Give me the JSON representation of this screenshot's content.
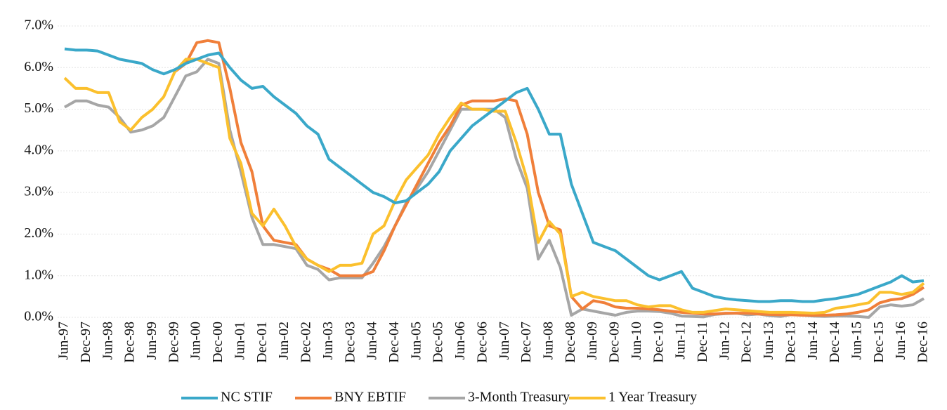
{
  "chart_data": {
    "type": "line",
    "categories": [
      "Jun-97",
      null,
      "Dec-97",
      null,
      "Jun-98",
      null,
      "Dec-98",
      null,
      "Jun-99",
      null,
      "Dec-99",
      null,
      "Jun-00",
      null,
      "Dec-00",
      null,
      "Jun-01",
      null,
      "Dec-01",
      null,
      "Jun-02",
      null,
      "Dec-02",
      null,
      "Jun-03",
      null,
      "Dec-03",
      null,
      "Jun-04",
      null,
      "Dec-04",
      null,
      "Jun-05",
      null,
      "Dec-05",
      null,
      "Jun-06",
      null,
      "Dec-06",
      null,
      "Jun-07",
      null,
      "Dec-07",
      null,
      "Jun-08",
      null,
      "Dec-08",
      null,
      "Jun-09",
      null,
      "Dec-09",
      null,
      "Jun-10",
      null,
      "Dec-10",
      null,
      "Jun-11",
      null,
      "Dec-11",
      null,
      "Jun-12",
      null,
      "Dec-12",
      null,
      "Jun-13",
      null,
      "Dec-13",
      null,
      "Jun-14",
      null,
      "Dec-14",
      null,
      "Jun-15",
      null,
      "Dec-15",
      null,
      "Jun-16",
      null,
      "Dec-16"
    ],
    "series": [
      {
        "name": "NC STIF",
        "color": "#3aa8c9",
        "values": [
          6.45,
          6.42,
          6.42,
          6.4,
          6.3,
          6.2,
          6.15,
          6.1,
          5.95,
          5.85,
          5.95,
          6.1,
          6.2,
          6.3,
          6.35,
          6.0,
          5.7,
          5.5,
          5.55,
          5.3,
          5.1,
          4.9,
          4.6,
          4.4,
          3.8,
          3.6,
          3.4,
          3.2,
          3.0,
          2.9,
          2.75,
          2.8,
          3.0,
          3.2,
          3.5,
          4.0,
          4.3,
          4.6,
          4.8,
          5.0,
          5.2,
          5.4,
          5.5,
          5.0,
          4.4,
          4.4,
          3.2,
          2.5,
          1.8,
          1.7,
          1.6,
          1.4,
          1.2,
          1.0,
          0.9,
          1.0,
          1.1,
          0.7,
          0.6,
          0.5,
          0.45,
          0.42,
          0.4,
          0.38,
          0.38,
          0.4,
          0.4,
          0.38,
          0.38,
          0.42,
          0.45,
          0.5,
          0.55,
          0.65,
          0.75,
          0.85,
          1.0,
          0.85,
          0.88
        ]
      },
      {
        "name": "BNY EBTIF",
        "color": "#f07f3a",
        "values": [
          null,
          null,
          null,
          null,
          null,
          null,
          null,
          null,
          null,
          null,
          5.9,
          6.1,
          6.6,
          6.65,
          6.6,
          5.5,
          4.2,
          3.5,
          2.2,
          1.85,
          1.8,
          1.75,
          1.4,
          1.25,
          1.15,
          1.0,
          1.0,
          1.0,
          1.1,
          1.6,
          2.2,
          2.7,
          3.2,
          3.7,
          4.2,
          4.6,
          5.1,
          5.2,
          5.2,
          5.2,
          5.25,
          5.2,
          4.4,
          3.0,
          2.2,
          2.1,
          0.5,
          0.2,
          0.4,
          0.35,
          0.25,
          0.22,
          0.22,
          0.2,
          0.18,
          0.15,
          0.12,
          0.1,
          0.08,
          0.08,
          0.1,
          0.1,
          0.1,
          0.08,
          0.07,
          0.06,
          0.06,
          0.05,
          0.05,
          0.05,
          0.06,
          0.08,
          0.12,
          0.18,
          0.35,
          0.42,
          0.45,
          0.55,
          0.72
        ]
      },
      {
        "name": "3-Month Treasury",
        "color": "#a6a6a6",
        "values": [
          5.05,
          5.2,
          5.2,
          5.1,
          5.05,
          4.8,
          4.45,
          4.5,
          4.6,
          4.8,
          5.3,
          5.8,
          5.9,
          6.2,
          6.1,
          4.5,
          3.5,
          2.4,
          1.75,
          1.75,
          1.7,
          1.65,
          1.25,
          1.15,
          0.9,
          0.95,
          0.95,
          0.95,
          1.3,
          1.7,
          2.2,
          2.75,
          3.1,
          3.5,
          4.0,
          4.5,
          5.0,
          5.0,
          5.0,
          5.0,
          4.8,
          3.8,
          3.1,
          1.4,
          1.85,
          1.2,
          0.05,
          0.2,
          0.15,
          0.1,
          0.05,
          0.12,
          0.15,
          0.15,
          0.14,
          0.1,
          0.03,
          0.02,
          0.01,
          0.07,
          0.09,
          0.1,
          0.06,
          0.08,
          0.04,
          0.02,
          0.07,
          0.05,
          0.03,
          0.02,
          0.03,
          0.03,
          0.02,
          0.0,
          0.25,
          0.3,
          0.27,
          0.3,
          0.45
        ]
      },
      {
        "name": "1 Year Treasury",
        "color": "#fbc02d",
        "values": [
          5.75,
          5.5,
          5.5,
          5.4,
          5.4,
          4.7,
          4.5,
          4.8,
          5.0,
          5.3,
          5.9,
          6.2,
          6.2,
          6.1,
          6.0,
          4.3,
          3.7,
          2.5,
          2.2,
          2.6,
          2.2,
          1.7,
          1.4,
          1.25,
          1.1,
          1.25,
          1.25,
          1.3,
          2.0,
          2.2,
          2.8,
          3.3,
          3.6,
          3.9,
          4.4,
          4.8,
          5.15,
          5.0,
          5.0,
          4.95,
          4.95,
          4.2,
          3.3,
          1.8,
          2.3,
          2.0,
          0.5,
          0.6,
          0.5,
          0.45,
          0.4,
          0.4,
          0.3,
          0.25,
          0.28,
          0.28,
          0.18,
          0.12,
          0.12,
          0.16,
          0.2,
          0.18,
          0.16,
          0.14,
          0.12,
          0.12,
          0.12,
          0.11,
          0.1,
          0.12,
          0.22,
          0.25,
          0.3,
          0.35,
          0.6,
          0.6,
          0.55,
          0.6,
          0.82
        ]
      }
    ],
    "ylim": [
      0,
      7
    ],
    "yticks": [
      {
        "value": 0,
        "label": "0.0%"
      },
      {
        "value": 1,
        "label": "1.0%"
      },
      {
        "value": 2,
        "label": "2.0%"
      },
      {
        "value": 3,
        "label": "3.0%"
      },
      {
        "value": 4,
        "label": "4.0%"
      },
      {
        "value": 5,
        "label": "5.0%"
      },
      {
        "value": 6,
        "label": "6.0%"
      },
      {
        "value": 7,
        "label": "7.0%"
      }
    ],
    "grid": true,
    "legend": "bottom"
  }
}
